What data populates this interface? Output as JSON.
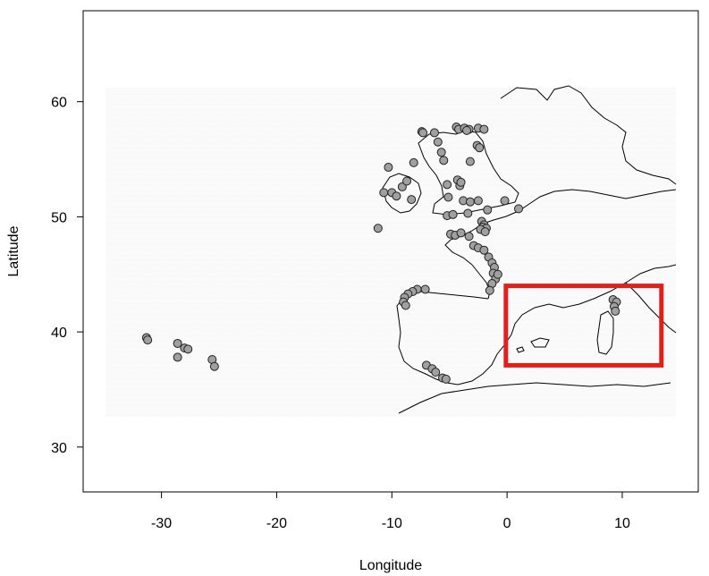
{
  "chart_data": {
    "type": "scatter",
    "title": "",
    "xlabel": "Longitude",
    "ylabel": "Latitude",
    "xlim": [
      -36.8,
      16.6
    ],
    "ylim": [
      26.1,
      67.9
    ],
    "x_ticks": [
      -30,
      -20,
      -10,
      0,
      10
    ],
    "y_ticks": [
      30,
      40,
      50,
      60
    ],
    "x_tick_labels": [
      "-30",
      "-20",
      "-10",
      "0",
      "10"
    ],
    "y_tick_labels": [
      "30",
      "40",
      "50",
      "60"
    ],
    "grid": false,
    "legend": "none",
    "background_map": "North-East Atlantic bathymetry and coastline",
    "highlight_box": {
      "lon": [
        -0.1,
        13.4
      ],
      "lat": [
        37.1,
        44.0
      ],
      "color": "#e0201b"
    },
    "point_color": "#a0a0a0",
    "point_edge": "#222222",
    "points": [
      {
        "x": -31.3,
        "y": 39.5
      },
      {
        "x": -31.2,
        "y": 39.3
      },
      {
        "x": -28.6,
        "y": 39.0
      },
      {
        "x": -28.0,
        "y": 38.6
      },
      {
        "x": -27.7,
        "y": 38.5
      },
      {
        "x": -28.6,
        "y": 37.8
      },
      {
        "x": -25.6,
        "y": 37.6
      },
      {
        "x": -25.4,
        "y": 37.0
      },
      {
        "x": -11.2,
        "y": 49.0
      },
      {
        "x": -10.7,
        "y": 52.1
      },
      {
        "x": -10.0,
        "y": 52.1
      },
      {
        "x": -10.3,
        "y": 54.3
      },
      {
        "x": -9.6,
        "y": 51.8
      },
      {
        "x": -9.1,
        "y": 52.6
      },
      {
        "x": -8.7,
        "y": 53.1
      },
      {
        "x": -8.1,
        "y": 54.7
      },
      {
        "x": -8.3,
        "y": 51.5
      },
      {
        "x": -7.4,
        "y": 57.4
      },
      {
        "x": -6.3,
        "y": 57.3
      },
      {
        "x": -6.0,
        "y": 56.5
      },
      {
        "x": -7.3,
        "y": 57.3
      },
      {
        "x": -5.7,
        "y": 55.6
      },
      {
        "x": -5.5,
        "y": 54.9
      },
      {
        "x": -4.4,
        "y": 57.8
      },
      {
        "x": -4.2,
        "y": 57.6
      },
      {
        "x": -3.7,
        "y": 57.7
      },
      {
        "x": -3.3,
        "y": 57.6
      },
      {
        "x": -2.5,
        "y": 57.7
      },
      {
        "x": -2.0,
        "y": 57.6
      },
      {
        "x": -3.5,
        "y": 57.5
      },
      {
        "x": -2.6,
        "y": 56.2
      },
      {
        "x": -2.4,
        "y": 56.0
      },
      {
        "x": -3.2,
        "y": 54.8
      },
      {
        "x": -4.3,
        "y": 53.2
      },
      {
        "x": -4.1,
        "y": 52.7
      },
      {
        "x": -4.0,
        "y": 53.0
      },
      {
        "x": -5.2,
        "y": 52.8
      },
      {
        "x": -5.1,
        "y": 51.7
      },
      {
        "x": -3.8,
        "y": 51.4
      },
      {
        "x": -3.2,
        "y": 51.3
      },
      {
        "x": -2.5,
        "y": 51.4
      },
      {
        "x": -0.2,
        "y": 51.4
      },
      {
        "x": 1.0,
        "y": 50.7
      },
      {
        "x": -1.7,
        "y": 50.6
      },
      {
        "x": -3.4,
        "y": 50.3
      },
      {
        "x": -5.2,
        "y": 50.1
      },
      {
        "x": -4.7,
        "y": 50.2
      },
      {
        "x": -2.2,
        "y": 49.6
      },
      {
        "x": -2.0,
        "y": 49.3
      },
      {
        "x": -2.1,
        "y": 49.1
      },
      {
        "x": -1.8,
        "y": 49.0
      },
      {
        "x": -2.3,
        "y": 48.9
      },
      {
        "x": -1.9,
        "y": 48.7
      },
      {
        "x": -4.9,
        "y": 48.5
      },
      {
        "x": -4.5,
        "y": 48.4
      },
      {
        "x": -4.0,
        "y": 48.6
      },
      {
        "x": -3.3,
        "y": 48.3
      },
      {
        "x": -2.9,
        "y": 47.5
      },
      {
        "x": -2.5,
        "y": 47.3
      },
      {
        "x": -2.0,
        "y": 47.1
      },
      {
        "x": -1.6,
        "y": 46.5
      },
      {
        "x": -1.3,
        "y": 46.0
      },
      {
        "x": -1.1,
        "y": 45.6
      },
      {
        "x": -1.2,
        "y": 45.1
      },
      {
        "x": -1.0,
        "y": 44.6
      },
      {
        "x": -1.3,
        "y": 44.2
      },
      {
        "x": -1.5,
        "y": 43.6
      },
      {
        "x": -0.8,
        "y": 45.0
      },
      {
        "x": -7.8,
        "y": 43.7
      },
      {
        "x": -7.1,
        "y": 43.7
      },
      {
        "x": -8.2,
        "y": 43.5
      },
      {
        "x": -8.6,
        "y": 43.3
      },
      {
        "x": -8.9,
        "y": 43.0
      },
      {
        "x": -9.0,
        "y": 42.6
      },
      {
        "x": -8.8,
        "y": 42.3
      },
      {
        "x": -7.0,
        "y": 37.1
      },
      {
        "x": -6.5,
        "y": 36.8
      },
      {
        "x": -6.2,
        "y": 36.5
      },
      {
        "x": -5.6,
        "y": 36.0
      },
      {
        "x": -5.3,
        "y": 35.9
      },
      {
        "x": 9.2,
        "y": 42.8
      },
      {
        "x": 9.5,
        "y": 42.6
      },
      {
        "x": 9.3,
        "y": 42.2
      },
      {
        "x": 9.4,
        "y": 41.8
      }
    ]
  }
}
